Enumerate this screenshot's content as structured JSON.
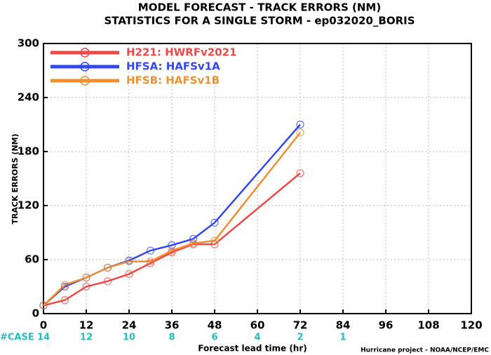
{
  "chart_data": {
    "type": "line",
    "title": "MODEL FORECAST - TRACK ERRORS (NM)",
    "subtitle": "STATISTICS FOR A SINGLE STORM - ep032020_BORIS",
    "x_label": "Forecast lead time (hr)",
    "y_label": "TRACK ERRORS (NM)",
    "footer": "Hurricane project - NOAA/NCEP/EMC",
    "x": [
      0,
      6,
      12,
      18,
      24,
      30,
      36,
      42,
      48,
      72
    ],
    "series": [
      {
        "name": "H221: HWRFv2021",
        "color": "#f04848",
        "values": [
          9,
          15,
          30,
          36,
          44,
          56,
          68,
          77,
          77,
          156
        ]
      },
      {
        "name": "HFSA: HAFSv1A",
        "color": "#3348f0",
        "values": [
          9,
          30,
          40,
          51,
          59,
          70,
          76,
          83,
          101,
          210
        ]
      },
      {
        "name": "HFSB: HAFSv1B",
        "color": "#f09030",
        "values": [
          9,
          32,
          40,
          51,
          58,
          58,
          70,
          78,
          81,
          201
        ]
      }
    ],
    "xlim": [
      0,
      120
    ],
    "xticks": [
      0,
      12,
      24,
      36,
      48,
      60,
      72,
      84,
      96,
      108,
      120
    ],
    "ylim": [
      0,
      300
    ],
    "yticks": [
      0,
      60,
      120,
      180,
      240,
      300
    ],
    "grid": true,
    "legend": "upper left",
    "case_label": "#CASE",
    "case_x": [
      0,
      12,
      24,
      36,
      48,
      60,
      72,
      84
    ],
    "case_counts": [
      14,
      12,
      10,
      8,
      6,
      4,
      2,
      1
    ]
  }
}
